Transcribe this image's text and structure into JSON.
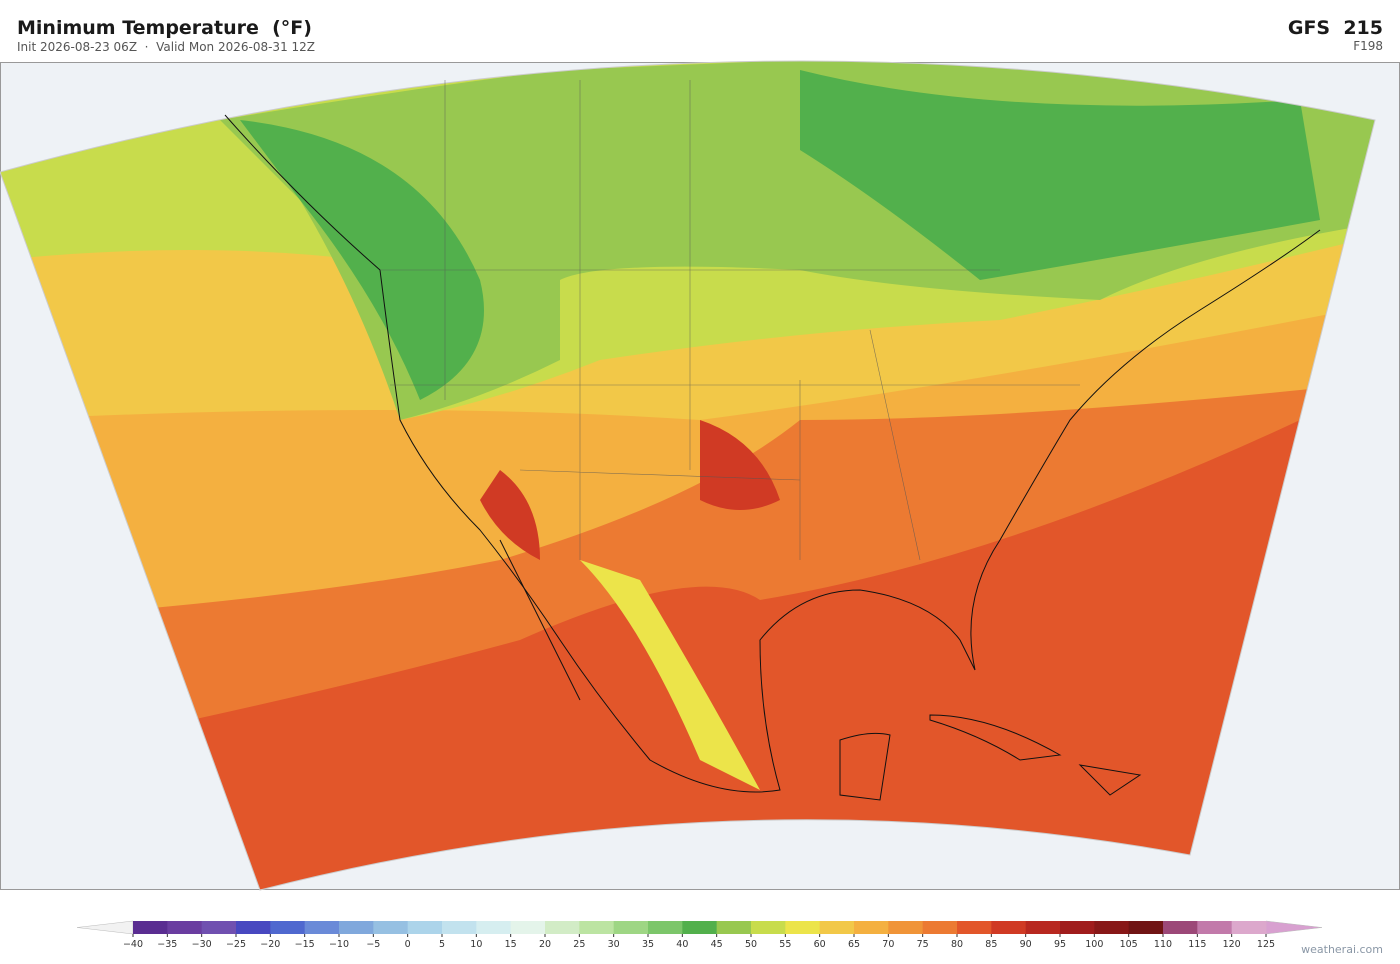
{
  "header": {
    "title": "Minimum Temperature  (°F)",
    "subtitle": "Init 2026-08-23 06Z  ·  Valid Mon 2026-08-31 12Z",
    "model": "GFS  215",
    "forecast_hour": "F198"
  },
  "colorbar": {
    "ticks": [
      {
        "value": -40,
        "label": "−40"
      },
      {
        "value": -35,
        "label": "−35"
      },
      {
        "value": -30,
        "label": "−30"
      },
      {
        "value": -25,
        "label": "−25"
      },
      {
        "value": -20,
        "label": "−20"
      },
      {
        "value": -15,
        "label": "−15"
      },
      {
        "value": -10,
        "label": "−10"
      },
      {
        "value": -5,
        "label": "−5"
      },
      0,
      5,
      10,
      15,
      20,
      25,
      30,
      35,
      40,
      45,
      50,
      55,
      60,
      65,
      70,
      75,
      80,
      85,
      90,
      95,
      100,
      105,
      110,
      115,
      120,
      125
    ],
    "colors": [
      "#5a2d91",
      "#6a3da0",
      "#7050b0",
      "#4848c0",
      "#4f68cf",
      "#6a8ad8",
      "#80a8dc",
      "#96c0e2",
      "#acd4ea",
      "#c2e2ee",
      "#d6eef0",
      "#e4f4ea",
      "#d2ecc6",
      "#bce4a2",
      "#9ed684",
      "#7cc66a",
      "#52b04c",
      "#98c850",
      "#c8dc4c",
      "#ece44a",
      "#f2c848",
      "#f4b040",
      "#f09438",
      "#ec7a32",
      "#e2562a",
      "#d03a24",
      "#b82820",
      "#a01c1c",
      "#881818",
      "#701414",
      "#9c4878",
      "#c27aaa",
      "#dca8cc"
    ],
    "under_color": "#f2f2f2",
    "over_color": "#d8a0d0"
  },
  "footer": {
    "watermark": "weatherai.com"
  }
}
